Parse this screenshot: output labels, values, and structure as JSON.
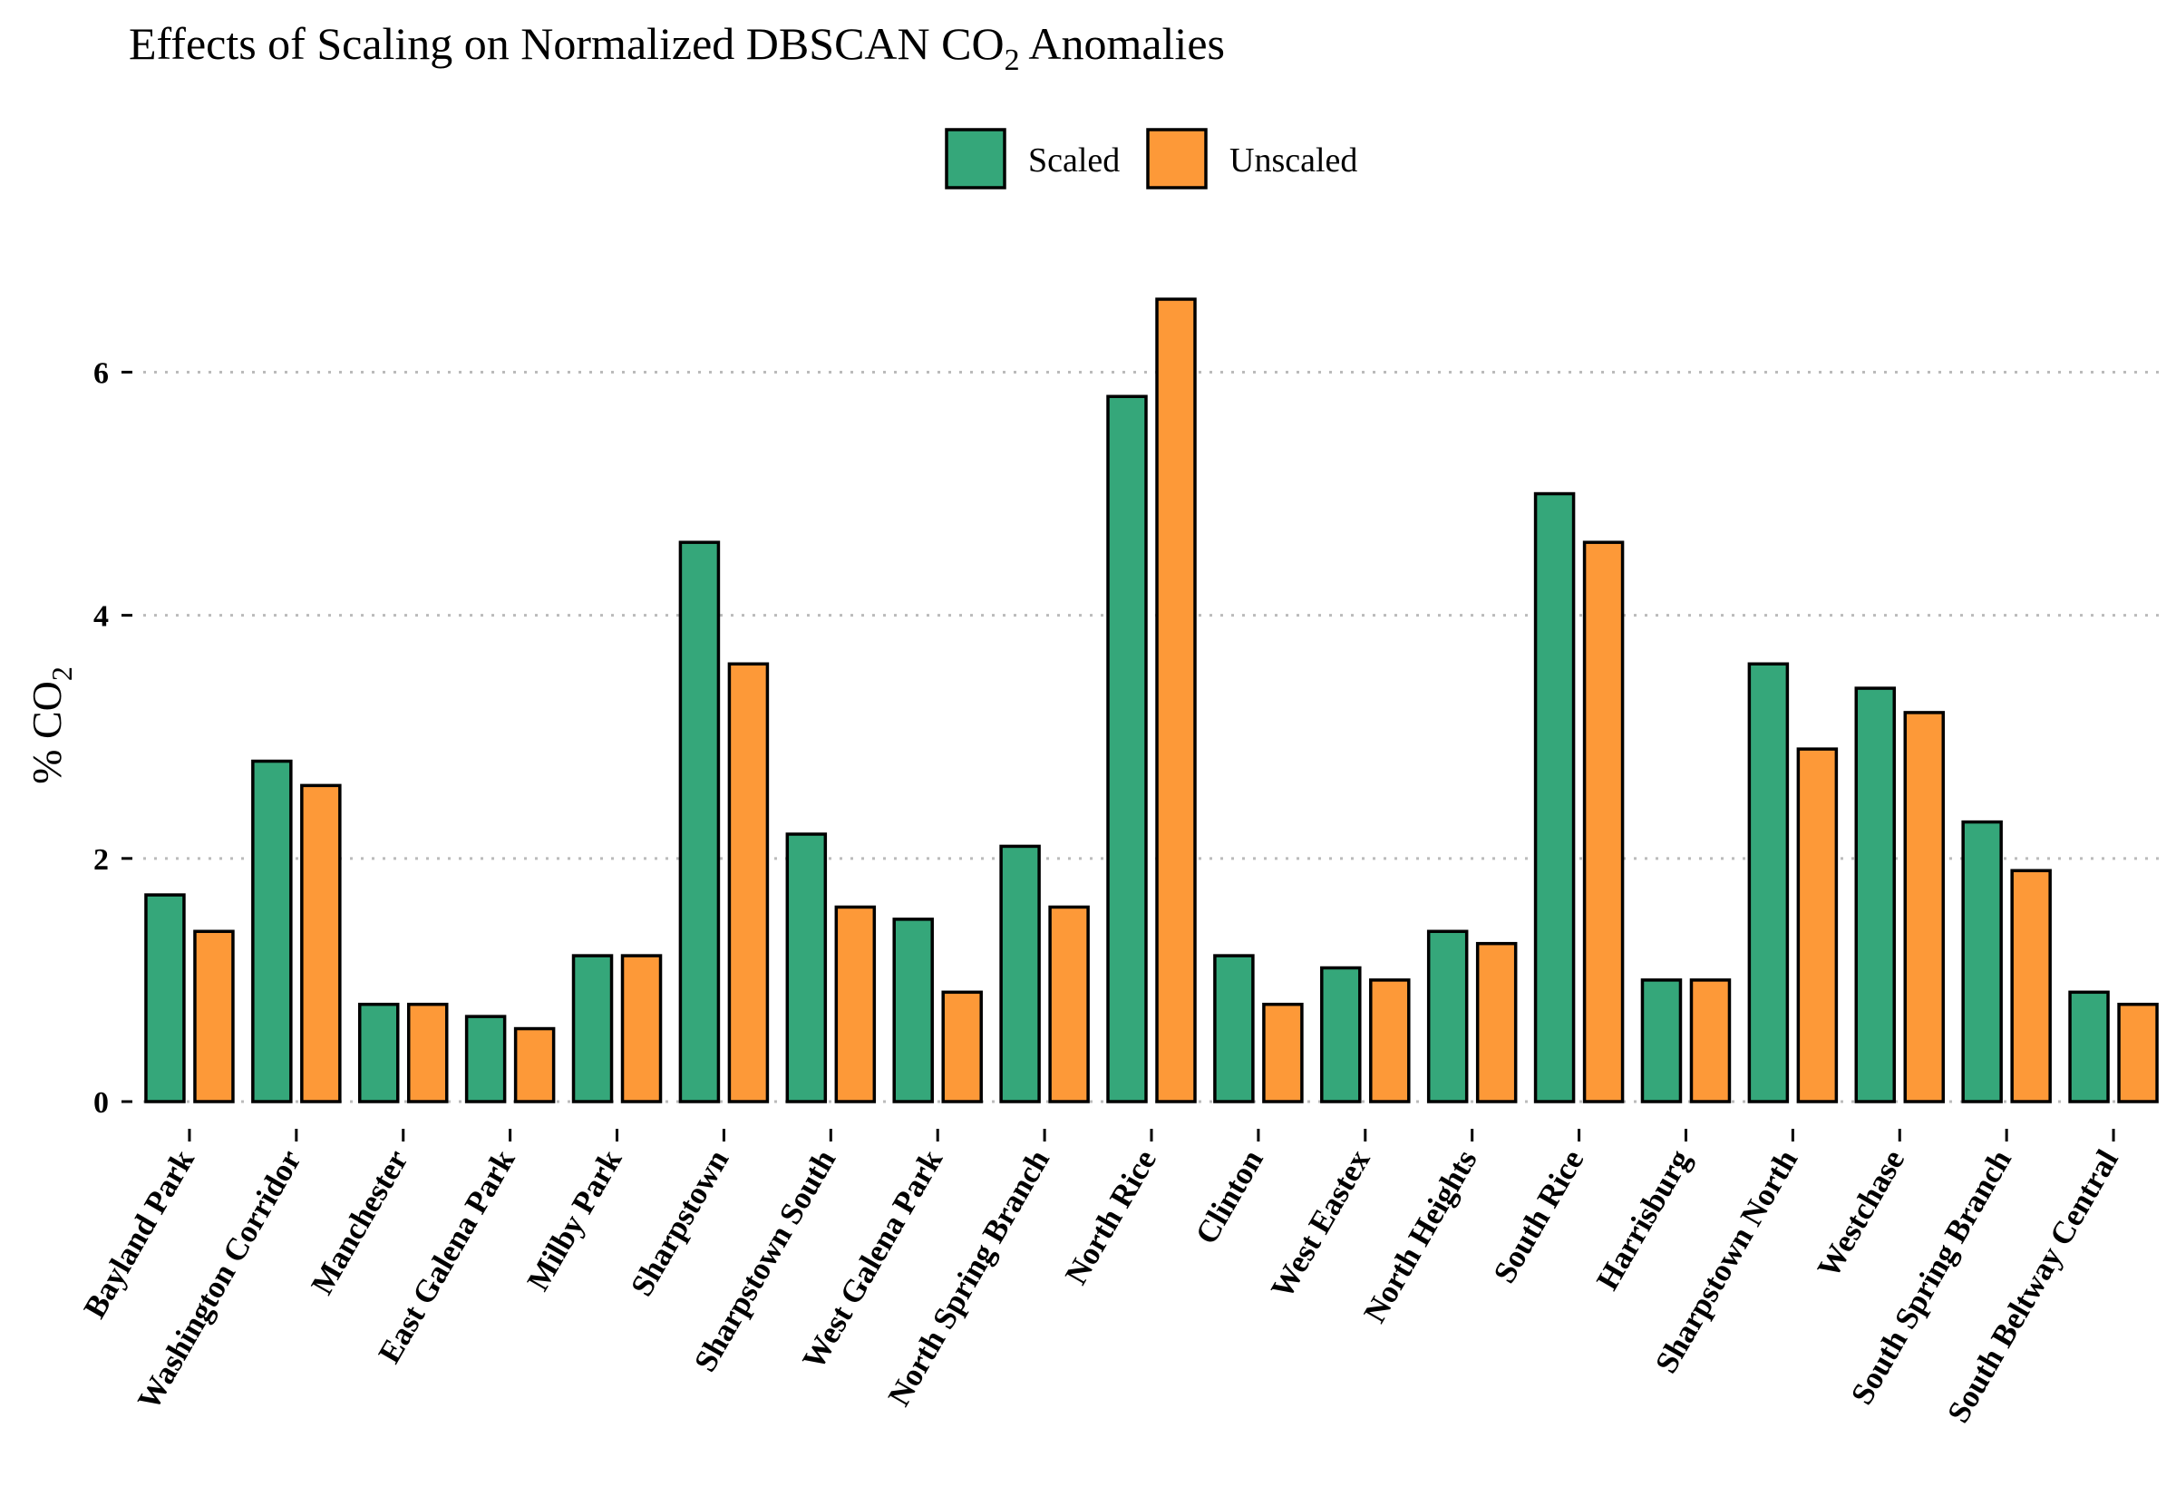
{
  "chart_data": {
    "type": "bar",
    "title": "Effects of Scaling on Normalized DBSCAN CO2 Anomalies",
    "title_parts": {
      "before": "Effects of Scaling on Normalized DBSCAN CO",
      "subscript": "2",
      "after": " Anomalies"
    },
    "ylabel_parts": {
      "before": "% CO",
      "subscript": "2"
    },
    "xlabel": "",
    "ylim": [
      0,
      6.9
    ],
    "yticks": [
      0,
      2,
      4,
      6
    ],
    "grid": "horizontal dotted",
    "legend_position": "top-center",
    "categories": [
      "Bayland Park",
      "Washington Corridor",
      "Manchester",
      "East Galena Park",
      "Milby Park",
      "Sharpstown",
      "Sharpstown South",
      "West Galena Park",
      "North Spring Branch",
      "North Rice",
      "Clinton",
      "West Eastex",
      "North Heights",
      "South Rice",
      "Harrisburg",
      "Sharpstown North",
      "Westchase",
      "South Spring Branch",
      "South Beltway Central"
    ],
    "series": [
      {
        "name": "Scaled",
        "color": "#35A77A",
        "values": [
          1.7,
          2.8,
          0.8,
          0.7,
          1.2,
          4.6,
          2.2,
          1.5,
          2.1,
          5.8,
          1.2,
          1.1,
          1.4,
          5.0,
          1.0,
          3.6,
          3.4,
          2.3,
          0.9
        ]
      },
      {
        "name": "Unscaled",
        "color": "#FD9938",
        "values": [
          1.4,
          2.6,
          0.8,
          0.6,
          1.2,
          3.6,
          1.6,
          0.9,
          1.6,
          6.6,
          0.8,
          1.0,
          1.3,
          4.6,
          1.0,
          2.9,
          3.2,
          1.9,
          0.8
        ]
      }
    ]
  }
}
